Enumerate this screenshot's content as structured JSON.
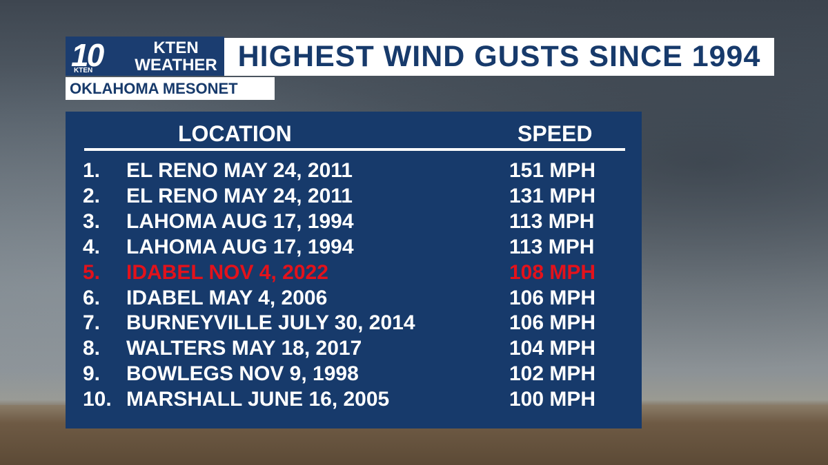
{
  "logo": {
    "number": "10",
    "small": "KTEN",
    "line1": "KTEN",
    "line2": "WEATHER"
  },
  "title": "HIGHEST WIND GUSTS SINCE 1994",
  "subtitle": "OKLAHOMA MESONET",
  "table": {
    "headers": [
      "LOCATION",
      "SPEED"
    ],
    "rows": [
      {
        "rank": "1.",
        "location": "EL RENO MAY 24, 2011",
        "speed": "151 MPH",
        "color": "#ffffff"
      },
      {
        "rank": "2.",
        "location": "EL RENO MAY 24, 2011",
        "speed": "131 MPH",
        "color": "#ffffff"
      },
      {
        "rank": "3.",
        "location": "LAHOMA AUG 17, 1994",
        "speed": "113 MPH",
        "color": "#ffffff"
      },
      {
        "rank": "4.",
        "location": "LAHOMA AUG 17, 1994",
        "speed": "113 MPH",
        "color": "#ffffff"
      },
      {
        "rank": "5.",
        "location": "IDABEL NOV 4, 2022",
        "speed": "108 MPH",
        "color": "#e3121b"
      },
      {
        "rank": "6.",
        "location": "IDABEL MAY 4, 2006",
        "speed": "106 MPH",
        "color": "#ffffff"
      },
      {
        "rank": "7.",
        "location": "BURNEYVILLE JULY 30, 2014",
        "speed": "106 MPH",
        "color": "#ffffff"
      },
      {
        "rank": "8.",
        "location": "WALTERS MAY 18, 2017",
        "speed": "104 MPH",
        "color": "#ffffff"
      },
      {
        "rank": "9.",
        "location": "BOWLEGS NOV 9, 1998",
        "speed": "102 MPH",
        "color": "#ffffff"
      },
      {
        "rank": "10.",
        "location": "MARSHALL JUNE 16, 2005",
        "speed": "100 MPH",
        "color": "#ffffff"
      }
    ]
  }
}
